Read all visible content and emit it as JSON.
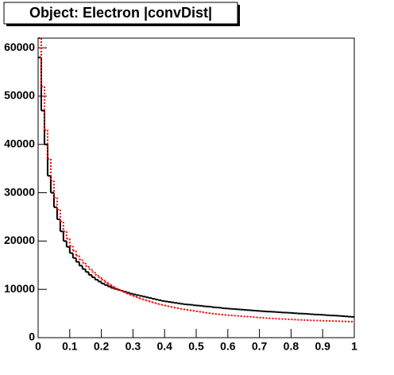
{
  "chart_data": {
    "type": "histogram",
    "title": "Object: Electron |convDist|",
    "bins": [
      0,
      0.01,
      0.02,
      0.03,
      0.04,
      0.05,
      0.06,
      0.07,
      0.08,
      0.09,
      0.1,
      0.11,
      0.12,
      0.13,
      0.14,
      0.15,
      0.16,
      0.17,
      0.18,
      0.19,
      0.2,
      0.21,
      0.22,
      0.23,
      0.24,
      0.25,
      0.26,
      0.27,
      0.28,
      0.29,
      0.3,
      0.31,
      0.32,
      0.33,
      0.34,
      0.35,
      0.36,
      0.37,
      0.38,
      0.39,
      0.4,
      0.41,
      0.42,
      0.43,
      0.44,
      0.45,
      0.46,
      0.47,
      0.48,
      0.49,
      0.5,
      0.51,
      0.52,
      0.53,
      0.54,
      0.55,
      0.56,
      0.57,
      0.58,
      0.59,
      0.6,
      0.61,
      0.62,
      0.63,
      0.64,
      0.65,
      0.66,
      0.67,
      0.68,
      0.69,
      0.7,
      0.71,
      0.72,
      0.73,
      0.74,
      0.75,
      0.76,
      0.77,
      0.78,
      0.79,
      0.8,
      0.81,
      0.82,
      0.83,
      0.84,
      0.85,
      0.86,
      0.87,
      0.88,
      0.89,
      0.9,
      0.91,
      0.92,
      0.93,
      0.94,
      0.95,
      0.96,
      0.97,
      0.98,
      0.99,
      1
    ],
    "series": [
      {
        "color": "#000000",
        "line_style": "solid",
        "values": [
          58000,
          47000,
          40000,
          33500,
          30000,
          27000,
          24500,
          22000,
          20000,
          18800,
          17500,
          16500,
          15700,
          14900,
          14200,
          13600,
          13000,
          12500,
          12000,
          11600,
          11200,
          10900,
          10600,
          10300,
          10100,
          9900,
          9700,
          9500,
          9300,
          9100,
          8950,
          8800,
          8650,
          8500,
          8350,
          8200,
          8050,
          7900,
          7750,
          7600,
          7500,
          7400,
          7300,
          7200,
          7100,
          7000,
          6900,
          6850,
          6800,
          6700,
          6650,
          6600,
          6500,
          6450,
          6400,
          6300,
          6250,
          6200,
          6100,
          6050,
          6000,
          5950,
          5900,
          5850,
          5800,
          5750,
          5700,
          5650,
          5600,
          5550,
          5500,
          5450,
          5400,
          5380,
          5350,
          5300,
          5250,
          5200,
          5180,
          5150,
          5100,
          5050,
          5000,
          4980,
          4950,
          4900,
          4850,
          4800,
          4780,
          4750,
          4700,
          4650,
          4600,
          4580,
          4550,
          4500,
          4450,
          4400,
          4350,
          4300
        ]
      },
      {
        "color": "#ff0000",
        "line_style": "dotted",
        "values": [
          62000,
          52000,
          43000,
          37000,
          32500,
          29000,
          26500,
          24000,
          22000,
          20500,
          19000,
          18000,
          17000,
          16200,
          15500,
          14800,
          14200,
          13600,
          13000,
          12500,
          12000,
          11500,
          11100,
          10700,
          10300,
          10000,
          9700,
          9400,
          9100,
          8850,
          8600,
          8350,
          8100,
          7900,
          7700,
          7500,
          7300,
          7100,
          6950,
          6800,
          6650,
          6500,
          6350,
          6200,
          6100,
          5950,
          5850,
          5750,
          5650,
          5550,
          5450,
          5350,
          5250,
          5150,
          5050,
          4970,
          4900,
          4830,
          4760,
          4700,
          4650,
          4600,
          4550,
          4500,
          4450,
          4400,
          4350,
          4300,
          4250,
          4200,
          4150,
          4100,
          4050,
          4000,
          3970,
          3940,
          3900,
          3870,
          3840,
          3800,
          3770,
          3740,
          3700,
          3670,
          3640,
          3610,
          3580,
          3560,
          3540,
          3520,
          3500,
          3480,
          3460,
          3440,
          3420,
          3400,
          3380,
          3360,
          3340,
          3320
        ]
      }
    ],
    "xlim": [
      0,
      1
    ],
    "xticks": [
      0,
      0.1,
      0.2,
      0.3,
      0.4,
      0.5,
      0.6,
      0.7,
      0.8,
      0.9,
      1
    ],
    "ylim": [
      0,
      62000
    ],
    "yticks": [
      0,
      10000,
      20000,
      30000,
      40000,
      50000,
      60000
    ]
  }
}
